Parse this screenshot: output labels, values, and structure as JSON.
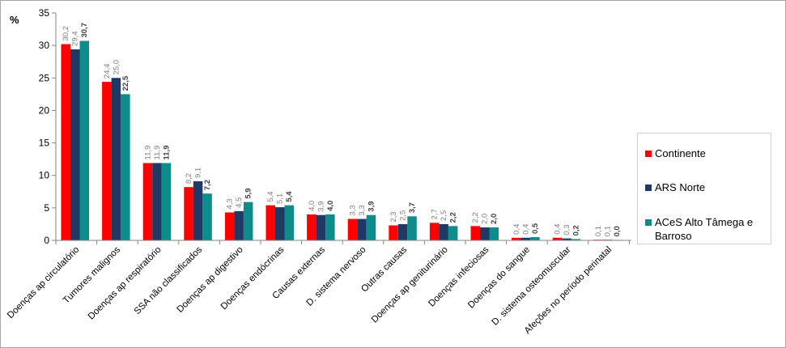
{
  "chart_data": {
    "type": "bar",
    "ylabel": "%",
    "ylim": [
      0,
      35
    ],
    "yticks": [
      0,
      5,
      10,
      15,
      20,
      25,
      30,
      35
    ],
    "grid": false,
    "legend_position": "right",
    "categories": [
      "Doenças ap circulatório",
      "Tumores malignos",
      "Doenças ap respiratório",
      "SSA não classificados",
      "Doenças ap digestivo",
      "Doenças endócrinas",
      "Causas externas",
      "D. sistema nervoso",
      "Outras causas",
      "Doenças ap geniturinário",
      "Doenças infeciosas",
      "Doenças do sangue",
      "D. sistema osteomuscular",
      "Afeções no período perinatal"
    ],
    "series": [
      {
        "name": "Continente",
        "color": "#ff0000",
        "values": [
          30.2,
          24.4,
          11.9,
          8.2,
          4.3,
          5.4,
          4.0,
          3.3,
          2.3,
          2.7,
          2.2,
          0.4,
          0.4,
          0.1
        ],
        "labels": [
          "30,2",
          "24,4",
          "11,9",
          "8,2",
          "4,3",
          "5,4",
          "4,0",
          "3,3",
          "2,3",
          "2,7",
          "2,2",
          "0,4",
          "0,4",
          "0,1"
        ]
      },
      {
        "name": "ARS Norte",
        "color": "#1f3864",
        "values": [
          29.4,
          25.0,
          11.9,
          9.1,
          4.5,
          5.1,
          3.9,
          3.3,
          2.5,
          2.5,
          2.0,
          0.4,
          0.3,
          0.1
        ],
        "labels": [
          "29,4",
          "25,0",
          "11,9",
          "9,1",
          "4,5",
          "5,1",
          "3,9",
          "3,3",
          "2,5",
          "2,5",
          "2,0",
          "0,4",
          "0,3",
          "0,1"
        ]
      },
      {
        "name": "ACeS Alto Tâmega e Barroso",
        "color": "#0e8c8c",
        "values": [
          30.7,
          22.5,
          11.9,
          7.2,
          5.9,
          5.4,
          4.0,
          3.9,
          3.7,
          2.2,
          2.0,
          0.5,
          0.2,
          0.0
        ],
        "labels": [
          "30,7",
          "22,5",
          "11,9",
          "7,2",
          "5,9",
          "5,4",
          "4,0",
          "3,9",
          "3,7",
          "2,2",
          "2,0",
          "0,5",
          "0,2",
          "0,0"
        ]
      }
    ]
  }
}
